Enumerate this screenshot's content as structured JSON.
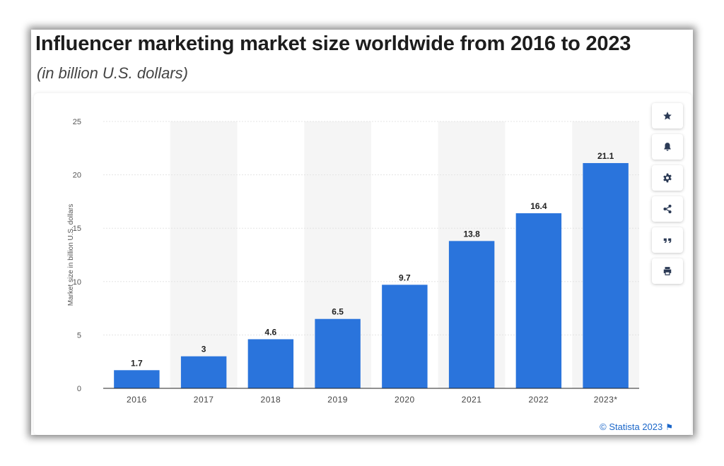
{
  "title": "Influencer marketing market size worldwide from 2016 to 2023",
  "subtitle": "(in billion U.S. dollars)",
  "credit": "© Statista 2023",
  "toolbar": {
    "items": [
      {
        "name": "favorite",
        "icon": "star-icon"
      },
      {
        "name": "notify",
        "icon": "bell-icon"
      },
      {
        "name": "settings",
        "icon": "gear-icon"
      },
      {
        "name": "share",
        "icon": "share-icon"
      },
      {
        "name": "cite",
        "icon": "quote-icon"
      },
      {
        "name": "print",
        "icon": "print-icon"
      }
    ]
  },
  "colors": {
    "bar": "#2a74dc",
    "band": "#f5f5f5",
    "grid": "#e4e4e4"
  },
  "chart_data": {
    "type": "bar",
    "categories": [
      "2016",
      "2017",
      "2018",
      "2019",
      "2020",
      "2021",
      "2022",
      "2023*"
    ],
    "values": [
      1.7,
      3,
      4.6,
      6.5,
      9.7,
      13.8,
      16.4,
      21.1
    ],
    "value_labels": [
      "1.7",
      "3",
      "4.6",
      "6.5",
      "9.7",
      "13.8",
      "16.4",
      "21.1"
    ],
    "ylabel": "Market size in billion U.S. dollars",
    "ylim": [
      0,
      25
    ],
    "yticks": [
      "0",
      "5",
      "10",
      "15",
      "20",
      "25"
    ],
    "grid": true,
    "legend": "none"
  }
}
